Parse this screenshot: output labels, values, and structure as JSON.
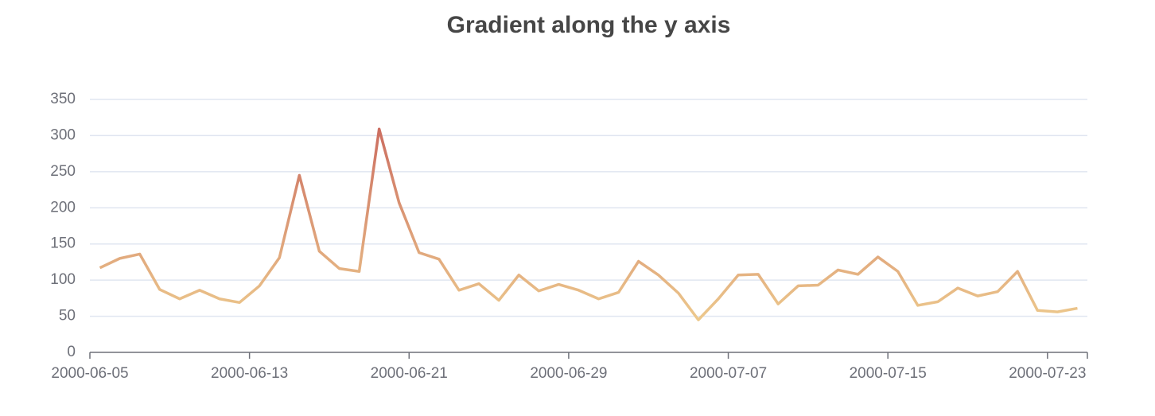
{
  "chart_data": {
    "type": "line",
    "title": "Gradient along the y axis",
    "categories": [
      "2000-06-05",
      null,
      null,
      null,
      null,
      null,
      null,
      null,
      "2000-06-13",
      null,
      null,
      null,
      null,
      null,
      null,
      null,
      "2000-06-21",
      null,
      null,
      null,
      null,
      null,
      null,
      null,
      "2000-06-29",
      null,
      null,
      null,
      null,
      null,
      null,
      null,
      "2000-07-07",
      null,
      null,
      null,
      null,
      null,
      null,
      null,
      "2000-07-15",
      null,
      null,
      null,
      null,
      null,
      null,
      null,
      "2000-07-23",
      null
    ],
    "values": [
      117,
      130,
      136,
      87,
      74,
      86,
      74,
      69,
      92,
      131,
      245,
      140,
      116,
      112,
      309,
      207,
      138,
      129,
      86,
      95,
      72,
      107,
      85,
      94,
      86,
      74,
      83,
      126,
      107,
      82,
      45,
      74,
      107,
      108,
      67,
      92,
      93,
      114,
      108,
      132,
      112,
      65,
      70,
      89,
      78,
      84,
      112,
      58,
      56,
      61
    ],
    "gradient_colors": [
      "#f2d894",
      "#c7605a"
    ],
    "ylim": [
      0,
      350
    ],
    "yticks": [
      0,
      50,
      100,
      150,
      200,
      250,
      300,
      350
    ],
    "grid": true
  }
}
